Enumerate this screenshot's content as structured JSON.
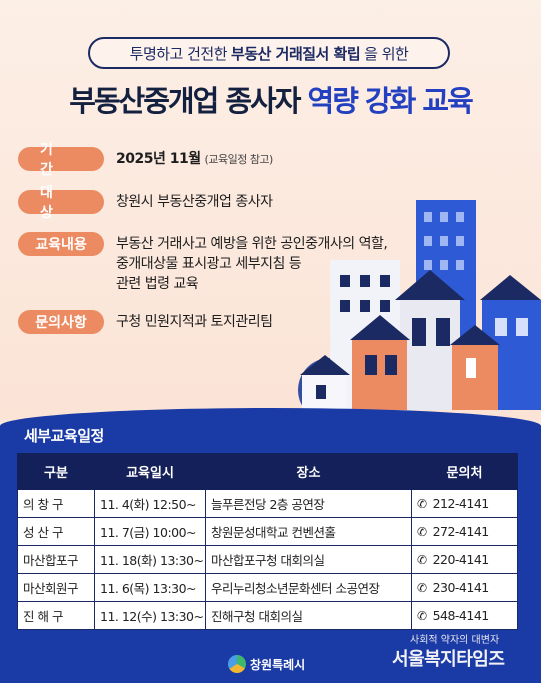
{
  "header": {
    "subtitle_before": "투명하고 건전한",
    "subtitle_strong": "부동산 거래질서 확립",
    "subtitle_after": "을 위한",
    "title_dark": "부동산중개업 종사자",
    "title_accent": "역량 강화 교육"
  },
  "info": [
    {
      "tag": "기간",
      "main": "2025년 11월",
      "note": "(교육일정 참고)"
    },
    {
      "tag": "대상",
      "lines": [
        "창원시 부동산중개업 종사자"
      ]
    },
    {
      "tag": "교육내용",
      "lines": [
        "부동산 거래사고 예방을 위한 공인중개사의 역할,",
        "중개대상물 표시광고 세부지침 등",
        "관련 법령 교육"
      ]
    },
    {
      "tag": "문의사항",
      "lines": [
        "구청 민원지적과 토지관리팀"
      ]
    }
  ],
  "schedule": {
    "title": "세부교육일정",
    "headers": [
      "구분",
      "교육일시",
      "장소",
      "문의처"
    ],
    "rows": [
      {
        "district": "의 창 구",
        "datetime": "11. 4(화) 12:50~",
        "place": "늘푸른전당 2층 공연장",
        "phone": "212-4141"
      },
      {
        "district": "성 산 구",
        "datetime": "11. 7(금) 10:00~",
        "place": "창원문성대학교 컨벤션홀",
        "phone": "272-4141"
      },
      {
        "district": "마산합포구",
        "datetime": "11. 18(화) 13:30~",
        "place": "마산합포구청 대회의실",
        "phone": "220-4141"
      },
      {
        "district": "마산회원구",
        "datetime": "11. 6(목) 13:30~",
        "place": "우리누리청소년문화센터 소공연장",
        "phone": "230-4141"
      },
      {
        "district": "진 해 구",
        "datetime": "11. 12(수) 13:30~",
        "place": "진해구청 대회의실",
        "phone": "548-4141"
      }
    ]
  },
  "footer": {
    "logo_text": "창원특례시",
    "watermark_small": "사회적 약자의 대변자",
    "watermark_big": "서울복지타임즈"
  },
  "icons": {
    "phone": "phone-icon",
    "logo": "changwon-logo-icon"
  },
  "colors": {
    "navy": "#1c2a63",
    "accent_blue": "#2240c0",
    "tag_orange": "#ec8a62",
    "bottom_blue": "#1a3aa6"
  }
}
